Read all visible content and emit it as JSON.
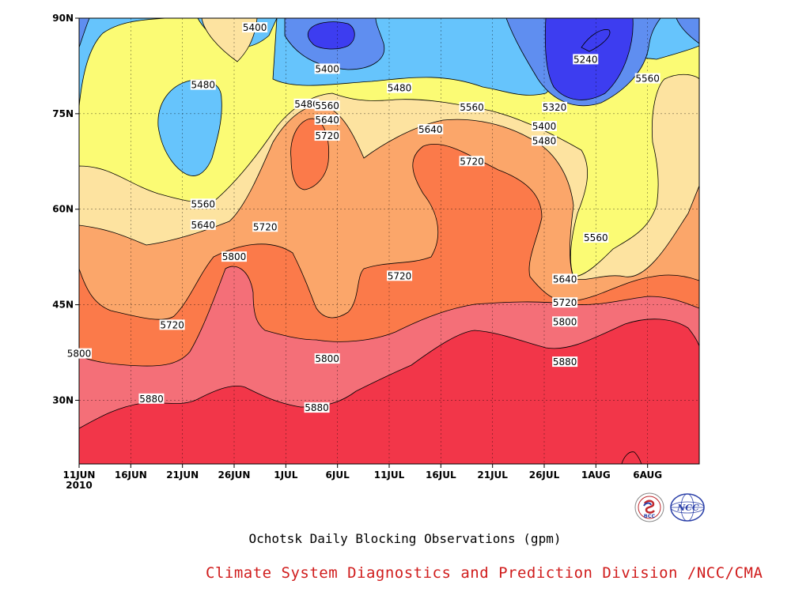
{
  "chart_data": {
    "type": "contour",
    "title": "Ochotsk Daily Blocking Observations (gpm)",
    "x_ticks": [
      "11JUN",
      "16JUN",
      "21JUN",
      "26JUN",
      "1JUL",
      "6JUL",
      "11JUL",
      "16JUL",
      "21JUL",
      "26JUL",
      "1AUG",
      "6AUG"
    ],
    "x_year": "2010",
    "y_ticks": [
      "90N",
      "75N",
      "60N",
      "45N",
      "30N"
    ],
    "ylim": [
      20,
      90
    ],
    "x_range": [
      "2010-06-11",
      "2010-08-10"
    ],
    "levels": [
      5240,
      5320,
      5400,
      5480,
      5560,
      5640,
      5720,
      5800,
      5880
    ],
    "colors": [
      "#3d3df0",
      "#5f8ef0",
      "#66c4fc",
      "#fbfb74",
      "#fde3a0",
      "#fba66a",
      "#fb7a4a",
      "#f46f78",
      "#f23649"
    ],
    "contour_labels": [
      {
        "text": "5400",
        "date": "2010-06-28",
        "lat": 88.5
      },
      {
        "text": "5240",
        "date": "2010-07-30",
        "lat": 83.5
      },
      {
        "text": "5560",
        "date": "2010-08-05",
        "lat": 80.5
      },
      {
        "text": "5400",
        "date": "2010-07-05",
        "lat": 82
      },
      {
        "text": "5480",
        "date": "2010-06-23",
        "lat": 79.5
      },
      {
        "text": "5480",
        "date": "2010-07-03",
        "lat": 76.5
      },
      {
        "text": "5560",
        "date": "2010-07-05",
        "lat": 76.2
      },
      {
        "text": "5480",
        "date": "2010-07-12",
        "lat": 79
      },
      {
        "text": "5560",
        "date": "2010-07-19",
        "lat": 76
      },
      {
        "text": "5320",
        "date": "2010-07-27",
        "lat": 76
      },
      {
        "text": "5640",
        "date": "2010-07-05",
        "lat": 74
      },
      {
        "text": "5720",
        "date": "2010-07-05",
        "lat": 71.5
      },
      {
        "text": "5640",
        "date": "2010-07-15",
        "lat": 72.5
      },
      {
        "text": "5400",
        "date": "2010-07-26",
        "lat": 73
      },
      {
        "text": "5480",
        "date": "2010-07-26",
        "lat": 70.7
      },
      {
        "text": "5720",
        "date": "2010-07-19",
        "lat": 67.5
      },
      {
        "text": "5560",
        "date": "2010-06-23",
        "lat": 60.8
      },
      {
        "text": "5640",
        "date": "2010-06-23",
        "lat": 57.5
      },
      {
        "text": "5720",
        "date": "2010-06-29",
        "lat": 57.2
      },
      {
        "text": "5560",
        "date": "2010-07-31",
        "lat": 55.5
      },
      {
        "text": "5800",
        "date": "2010-06-26",
        "lat": 52.5
      },
      {
        "text": "5720",
        "date": "2010-07-12",
        "lat": 49.5
      },
      {
        "text": "5640",
        "date": "2010-07-28",
        "lat": 49
      },
      {
        "text": "5720",
        "date": "2010-07-28",
        "lat": 45.3
      },
      {
        "text": "5720",
        "date": "2010-06-20",
        "lat": 41.8
      },
      {
        "text": "5800",
        "date": "2010-07-28",
        "lat": 42.3
      },
      {
        "text": "5800",
        "date": "2010-06-11",
        "lat": 37.3
      },
      {
        "text": "5800",
        "date": "2010-07-05",
        "lat": 36.5
      },
      {
        "text": "5880",
        "date": "2010-07-28",
        "lat": 36
      },
      {
        "text": "5880",
        "date": "2010-06-18",
        "lat": 30.2
      },
      {
        "text": "5880",
        "date": "2010-07-04",
        "lat": 28.8
      }
    ]
  },
  "credit": "Climate System Diagnostics and Prediction Division /NCC/CMA",
  "logos": [
    {
      "icon": "bcc-logo-icon",
      "text": "BCC",
      "color": "#c0282d"
    },
    {
      "icon": "ncc-logo-icon",
      "text": "NCC",
      "color": "#2a3fa8"
    }
  ]
}
